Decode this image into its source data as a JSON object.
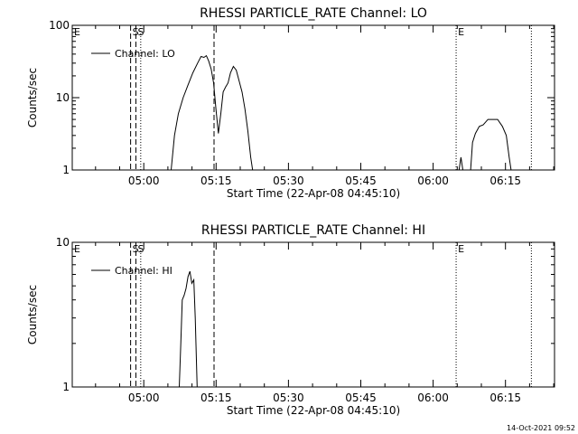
{
  "timestamp": "14-Oct-2021 09:52",
  "chart_data": [
    {
      "type": "line",
      "title": "RHESSI PARTICLE_RATE Channel: LO",
      "xlabel": "Start Time (22-Apr-08 04:45:10)",
      "ylabel": "Counts/sec",
      "y_scale": "log",
      "xlim_minutes": [
        0,
        100
      ],
      "ylim": [
        1,
        100
      ],
      "x_ticks": [
        {
          "label": "05:00",
          "value": 14.83
        },
        {
          "label": "05:15",
          "value": 29.83
        },
        {
          "label": "05:30",
          "value": 44.83
        },
        {
          "label": "05:45",
          "value": 59.83
        },
        {
          "label": "06:00",
          "value": 74.83
        },
        {
          "label": "06:15",
          "value": 89.83
        }
      ],
      "y_ticks": [
        {
          "label": "1",
          "value": 1
        },
        {
          "label": "10",
          "value": 10
        },
        {
          "label": "100",
          "value": 100
        }
      ],
      "legend": {
        "label": "Channel: LO",
        "placement": "top-left"
      },
      "markers": [
        {
          "label": "E",
          "x": 0,
          "style": "dotted"
        },
        {
          "label": "S",
          "x": 12.1,
          "style": "dashed"
        },
        {
          "label": "S",
          "x": 13.2,
          "style": "dashed"
        },
        {
          "label": "",
          "x": 14.2,
          "style": "dotted"
        },
        {
          "label": "",
          "x": 29.4,
          "style": "dashed"
        },
        {
          "label": "E",
          "x": 79.6,
          "style": "dotted"
        },
        {
          "label": "",
          "x": 95.2,
          "style": "dotted"
        }
      ],
      "series": [
        {
          "name": "Channel: LO",
          "segments": [
            [
              [
                20.5,
                1
              ],
              [
                21.2,
                3
              ],
              [
                22,
                6
              ],
              [
                23,
                10
              ],
              [
                24,
                15
              ],
              [
                25,
                22
              ],
              [
                26,
                30
              ],
              [
                26.7,
                37
              ],
              [
                27.3,
                36
              ],
              [
                27.8,
                38
              ],
              [
                28.3,
                32
              ],
              [
                28.8,
                25
              ],
              [
                29.3,
                16
              ],
              [
                29.8,
                7
              ],
              [
                30.3,
                3.2
              ],
              [
                30.8,
                6
              ],
              [
                31.3,
                12
              ],
              [
                31.8,
                14
              ],
              [
                32.3,
                16
              ],
              [
                32.8,
                22
              ],
              [
                33.4,
                27
              ],
              [
                34,
                24
              ],
              [
                34.6,
                17
              ],
              [
                35.2,
                12
              ],
              [
                35.8,
                7
              ],
              [
                36.4,
                3.5
              ],
              [
                37,
                1.5
              ],
              [
                37.4,
                1
              ]
            ],
            [
              [
                80.2,
                1
              ],
              [
                80.6,
                1.5
              ],
              [
                81,
                1
              ]
            ],
            [
              [
                82.6,
                1
              ],
              [
                83,
                2.4
              ],
              [
                83.6,
                3.2
              ],
              [
                84.4,
                4
              ],
              [
                85.2,
                4.2
              ],
              [
                86.2,
                5
              ],
              [
                87.2,
                5
              ],
              [
                88.2,
                5
              ],
              [
                89.2,
                4
              ],
              [
                90,
                3
              ],
              [
                90.6,
                1.5
              ],
              [
                91,
                1
              ]
            ]
          ]
        }
      ]
    },
    {
      "type": "line",
      "title": "RHESSI PARTICLE_RATE Channel: HI",
      "xlabel": "Start Time (22-Apr-08 04:45:10)",
      "ylabel": "Counts/sec",
      "y_scale": "log",
      "xlim_minutes": [
        0,
        100
      ],
      "ylim": [
        1,
        10
      ],
      "x_ticks": [
        {
          "label": "05:00",
          "value": 14.83
        },
        {
          "label": "05:15",
          "value": 29.83
        },
        {
          "label": "05:30",
          "value": 44.83
        },
        {
          "label": "05:45",
          "value": 59.83
        },
        {
          "label": "06:00",
          "value": 74.83
        },
        {
          "label": "06:15",
          "value": 89.83
        }
      ],
      "y_ticks": [
        {
          "label": "1",
          "value": 1
        },
        {
          "label": "10",
          "value": 10
        }
      ],
      "legend": {
        "label": "Channel: HI",
        "placement": "top-left"
      },
      "markers": [
        {
          "label": "E",
          "x": 0,
          "style": "dotted"
        },
        {
          "label": "S",
          "x": 12.1,
          "style": "dashed"
        },
        {
          "label": "S",
          "x": 13.2,
          "style": "dashed"
        },
        {
          "label": "",
          "x": 14.2,
          "style": "dotted"
        },
        {
          "label": "",
          "x": 29.4,
          "style": "dashed"
        },
        {
          "label": "E",
          "x": 79.6,
          "style": "dotted"
        },
        {
          "label": "",
          "x": 95.2,
          "style": "dotted"
        }
      ],
      "series": [
        {
          "name": "Channel: HI",
          "segments": [
            [
              [
                22.2,
                1
              ],
              [
                22.5,
                2
              ],
              [
                22.8,
                4
              ],
              [
                23.2,
                4.3
              ],
              [
                23.6,
                4.8
              ],
              [
                24,
                5.8
              ],
              [
                24.4,
                6.3
              ],
              [
                24.8,
                5.2
              ],
              [
                25.2,
                5.5
              ],
              [
                25.5,
                3
              ],
              [
                25.9,
                1
              ]
            ]
          ]
        }
      ]
    }
  ]
}
